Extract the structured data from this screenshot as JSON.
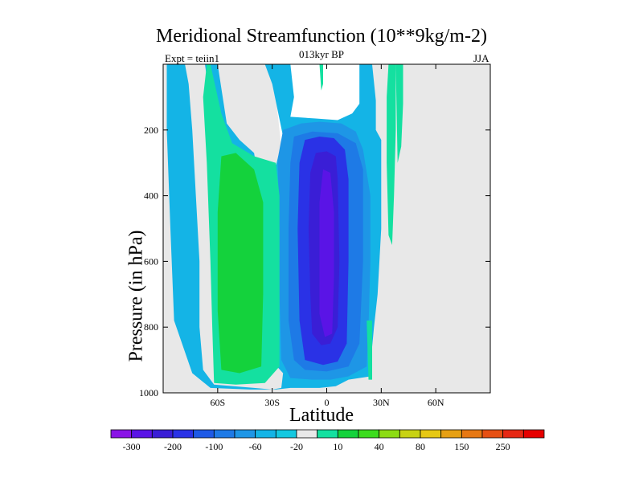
{
  "chart_data": {
    "type": "heatmap",
    "title": "Meridional Streamfunction (10**9kg/m-2)",
    "left_label": "Expt = teiin1",
    "center_label": "013kyr BP",
    "right_label": "JJA",
    "xlabel": "Latitude",
    "ylabel": "Pressure (in hPa)",
    "xlim": [
      -90,
      90
    ],
    "ylim": [
      1000,
      0
    ],
    "x_ticks": [
      {
        "value": -60,
        "label": "60S"
      },
      {
        "value": -30,
        "label": "30S"
      },
      {
        "value": 0,
        "label": "0"
      },
      {
        "value": 30,
        "label": "30N"
      },
      {
        "value": 60,
        "label": "60N"
      }
    ],
    "y_ticks": [
      {
        "value": 200,
        "label": "200"
      },
      {
        "value": 400,
        "label": "400"
      },
      {
        "value": 600,
        "label": "600"
      },
      {
        "value": 800,
        "label": "800"
      },
      {
        "value": 1000,
        "label": "1000"
      }
    ],
    "colorbar_labels": [
      "-300",
      "-200",
      "-100",
      "-60",
      "-20",
      "10",
      "40",
      "80",
      "150",
      "250"
    ],
    "colorbar_colors": [
      "#8a14e6",
      "#5a14e6",
      "#3a1ed6",
      "#2a32e6",
      "#1e5ae6",
      "#1e7ae6",
      "#1e96e6",
      "#14b4e6",
      "#14c8e0",
      "#e8e8e8",
      "#14e0a0",
      "#14d23c",
      "#3cdc1e",
      "#8cdc14",
      "#c8d214",
      "#e6c814",
      "#e6a014",
      "#e67814",
      "#e65014",
      "#e62814",
      "#e60000"
    ],
    "contours": [
      {
        "level": "-20",
        "color": "#14b4e6",
        "points": [
          [
            -88,
            0
          ],
          [
            -78,
            0
          ],
          [
            -76,
            60
          ],
          [
            -74,
            200
          ],
          [
            -72,
            400
          ],
          [
            -70,
            600
          ],
          [
            -70,
            800
          ],
          [
            -68,
            930
          ],
          [
            -62,
            975
          ],
          [
            -40,
            985
          ],
          [
            -30,
            990
          ],
          [
            -25,
            985
          ],
          [
            -24,
            940
          ],
          [
            -34,
            880
          ],
          [
            -36,
            600
          ],
          [
            -36,
            400
          ],
          [
            -40,
            270
          ],
          [
            -48,
            230
          ],
          [
            -55,
            180
          ],
          [
            -60,
            0
          ],
          [
            -67,
            0
          ],
          [
            -64,
            120
          ],
          [
            -60,
            210
          ],
          [
            -52,
            280
          ],
          [
            -40,
            300
          ],
          [
            -28,
            310
          ],
          [
            -24,
            220
          ],
          [
            -30,
            60
          ],
          [
            -34,
            0
          ],
          [
            -20,
            0
          ],
          [
            -18,
            100
          ],
          [
            -20,
            160
          ],
          [
            -6,
            165
          ],
          [
            6,
            170
          ],
          [
            14,
            150
          ],
          [
            18,
            120
          ],
          [
            18,
            0
          ],
          [
            25,
            0
          ],
          [
            27,
            110
          ],
          [
            27,
            200
          ],
          [
            30,
            230
          ],
          [
            30,
            500
          ],
          [
            28,
            700
          ],
          [
            26,
            800
          ],
          [
            25,
            860
          ],
          [
            25,
            920
          ],
          [
            24,
            950
          ],
          [
            12,
            960
          ],
          [
            5,
            980
          ],
          [
            -4,
            985
          ],
          [
            -20,
            985
          ],
          [
            -28,
            990
          ],
          [
            -42,
            990
          ],
          [
            -64,
            985
          ],
          [
            -74,
            940
          ],
          [
            -84,
            780
          ],
          [
            -86,
            500
          ],
          [
            -88,
            200
          ]
        ]
      },
      {
        "level": "-60",
        "color": "#1e96e6",
        "points": [
          [
            -27,
            290
          ],
          [
            -24,
            200
          ],
          [
            -14,
            180
          ],
          [
            -4,
            175
          ],
          [
            8,
            180
          ],
          [
            16,
            205
          ],
          [
            20,
            260
          ],
          [
            24,
            400
          ],
          [
            24,
            600
          ],
          [
            23,
            800
          ],
          [
            22,
            920
          ],
          [
            12,
            950
          ],
          [
            2,
            960
          ],
          [
            -8,
            960
          ],
          [
            -20,
            955
          ],
          [
            -25,
            900
          ],
          [
            -26,
            700
          ],
          [
            -26,
            500
          ]
        ]
      },
      {
        "level": "-100",
        "color": "#1e7ae6",
        "points": [
          [
            -20,
            300
          ],
          [
            -18,
            220
          ],
          [
            -8,
            205
          ],
          [
            6,
            210
          ],
          [
            16,
            240
          ],
          [
            20,
            320
          ],
          [
            20,
            600
          ],
          [
            18,
            850
          ],
          [
            12,
            920
          ],
          [
            0,
            935
          ],
          [
            -12,
            930
          ],
          [
            -18,
            900
          ],
          [
            -21,
            780
          ],
          [
            -21,
            500
          ]
        ]
      },
      {
        "level": "-200",
        "color": "#2a32e6",
        "points": [
          [
            -15,
            300
          ],
          [
            -12,
            230
          ],
          [
            -4,
            220
          ],
          [
            4,
            225
          ],
          [
            10,
            260
          ],
          [
            12,
            350
          ],
          [
            12,
            600
          ],
          [
            11,
            850
          ],
          [
            6,
            905
          ],
          [
            -2,
            915
          ],
          [
            -12,
            900
          ],
          [
            -15,
            780
          ],
          [
            -16,
            500
          ]
        ]
      },
      {
        "level": "-300",
        "color": "#3a1ed6",
        "points": [
          [
            -9,
            330
          ],
          [
            -6,
            270
          ],
          [
            0,
            265
          ],
          [
            5,
            280
          ],
          [
            6,
            350
          ],
          [
            7,
            600
          ],
          [
            6,
            800
          ],
          [
            2,
            850
          ],
          [
            -3,
            855
          ],
          [
            -8,
            820
          ],
          [
            -9,
            700
          ],
          [
            -10,
            500
          ]
        ]
      },
      {
        "level": "-400",
        "color": "#5a14e6",
        "points": [
          [
            -4,
            420
          ],
          [
            -2,
            320
          ],
          [
            2,
            330
          ],
          [
            4,
            450
          ],
          [
            4,
            650
          ],
          [
            3,
            820
          ],
          [
            -1,
            830
          ],
          [
            -4,
            760
          ]
        ]
      },
      {
        "level": "10",
        "color": "#14e0a0",
        "points": [
          [
            -64,
            0
          ],
          [
            -58,
            150
          ],
          [
            -52,
            240
          ],
          [
            -40,
            280
          ],
          [
            -28,
            300
          ],
          [
            -26,
            400
          ],
          [
            -26,
            700
          ],
          [
            -26,
            920
          ],
          [
            -34,
            970
          ],
          [
            -50,
            975
          ],
          [
            -62,
            970
          ],
          [
            -63,
            800
          ],
          [
            -64,
            600
          ],
          [
            -66,
            300
          ],
          [
            -68,
            100
          ],
          [
            -66,
            0
          ]
        ]
      },
      {
        "level": "40",
        "color": "#14d23c",
        "points": [
          [
            -58,
            280
          ],
          [
            -50,
            270
          ],
          [
            -40,
            320
          ],
          [
            -35,
            420
          ],
          [
            -35,
            700
          ],
          [
            -36,
            920
          ],
          [
            -48,
            940
          ],
          [
            -58,
            930
          ],
          [
            -60,
            750
          ],
          [
            -60,
            450
          ]
        ]
      },
      {
        "level": "10",
        "color": "#14e0a0",
        "points": [
          [
            34,
            0
          ],
          [
            38,
            0
          ],
          [
            38,
            200
          ],
          [
            37,
            400
          ],
          [
            36,
            550
          ],
          [
            34,
            520
          ],
          [
            33,
            300
          ],
          [
            33,
            100
          ]
        ]
      },
      {
        "level": "10",
        "color": "#14e0a0",
        "points": [
          [
            38,
            0
          ],
          [
            42,
            0
          ],
          [
            42,
            120
          ],
          [
            41,
            250
          ],
          [
            39,
            300
          ]
        ]
      },
      {
        "level": "10",
        "color": "#14e0a0",
        "points": [
          [
            -4,
            0
          ],
          [
            -2,
            0
          ],
          [
            -2,
            60
          ],
          [
            -3,
            80
          ]
        ]
      },
      {
        "level": "10",
        "color": "#14e0a0",
        "points": [
          [
            22,
            780
          ],
          [
            25,
            780
          ],
          [
            25,
            960
          ],
          [
            23,
            960
          ]
        ]
      }
    ]
  }
}
